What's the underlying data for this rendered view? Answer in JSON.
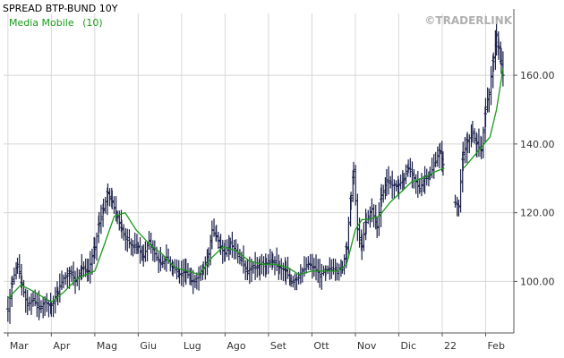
{
  "chart_data": {
    "type": "ohlc",
    "title": "SPREAD BTP-BUND 10Y",
    "watermark": {
      "prefix": "©TRADER",
      "suffix": "LINK"
    },
    "legend": {
      "label": "Media Mobile",
      "period": "(10)",
      "placement": "top-left"
    },
    "colors": {
      "bars": "#1a1f4a",
      "ma": "#1a9a1a",
      "grid": "#d8d8d8",
      "axis": "#555555",
      "title": "#000000",
      "watermark": "#b0b0b0"
    },
    "xlabel": "",
    "ylabel": "",
    "ylim": [
      85,
      178
    ],
    "y_ticks": [
      100,
      120,
      140,
      160
    ],
    "y_tick_labels": [
      "100.00",
      "120.00",
      "140.00",
      "160.00"
    ],
    "x_month_index": [
      0,
      1,
      2,
      3,
      4,
      5,
      6,
      7,
      8,
      9,
      10,
      11
    ],
    "x_month_labels": [
      "Mar",
      "Apr",
      "Mag",
      "Giu",
      "Lug",
      "Ago",
      "Set",
      "Ott",
      "Nov",
      "Dic",
      "22",
      "Feb"
    ],
    "x_range": [
      -0.1,
      11.65
    ],
    "grid": true,
    "close_points": [
      [
        0.0,
        92
      ],
      [
        0.1,
        100
      ],
      [
        0.22,
        105
      ],
      [
        0.32,
        99
      ],
      [
        0.45,
        93
      ],
      [
        0.58,
        95
      ],
      [
        0.72,
        92
      ],
      [
        0.85,
        94
      ],
      [
        1.0,
        93
      ],
      [
        1.15,
        97
      ],
      [
        1.28,
        101
      ],
      [
        1.42,
        103
      ],
      [
        1.55,
        100
      ],
      [
        1.7,
        104
      ],
      [
        1.85,
        103
      ],
      [
        2.0,
        110
      ],
      [
        2.1,
        117
      ],
      [
        2.2,
        121
      ],
      [
        2.3,
        126
      ],
      [
        2.4,
        123
      ],
      [
        2.52,
        119
      ],
      [
        2.62,
        115
      ],
      [
        2.75,
        112
      ],
      [
        2.88,
        110
      ],
      [
        3.0,
        110
      ],
      [
        3.12,
        107
      ],
      [
        3.25,
        112
      ],
      [
        3.38,
        108
      ],
      [
        3.52,
        105
      ],
      [
        3.65,
        107
      ],
      [
        3.8,
        104
      ],
      [
        3.95,
        102
      ],
      [
        4.1,
        103
      ],
      [
        4.22,
        100
      ],
      [
        4.35,
        101
      ],
      [
        4.5,
        104
      ],
      [
        4.62,
        108
      ],
      [
        4.7,
        115
      ],
      [
        4.8,
        113
      ],
      [
        4.9,
        110
      ],
      [
        5.0,
        108
      ],
      [
        5.12,
        111
      ],
      [
        5.25,
        109
      ],
      [
        5.38,
        106
      ],
      [
        5.52,
        103
      ],
      [
        5.65,
        104
      ],
      [
        5.8,
        105
      ],
      [
        5.95,
        105
      ],
      [
        6.1,
        106
      ],
      [
        6.25,
        104
      ],
      [
        6.4,
        103
      ],
      [
        6.52,
        100
      ],
      [
        6.65,
        101
      ],
      [
        6.78,
        103
      ],
      [
        6.92,
        105
      ],
      [
        7.05,
        104
      ],
      [
        7.18,
        102
      ],
      [
        7.32,
        103
      ],
      [
        7.45,
        104
      ],
      [
        7.58,
        103
      ],
      [
        7.7,
        104
      ],
      [
        7.8,
        110
      ],
      [
        7.9,
        125
      ],
      [
        7.96,
        132
      ],
      [
        8.05,
        115
      ],
      [
        8.15,
        110
      ],
      [
        8.25,
        118
      ],
      [
        8.38,
        121
      ],
      [
        8.5,
        116
      ],
      [
        8.6,
        125
      ],
      [
        8.72,
        129
      ],
      [
        8.85,
        128
      ],
      [
        9.0,
        128
      ],
      [
        9.12,
        130
      ],
      [
        9.22,
        133
      ],
      [
        9.35,
        130
      ],
      [
        9.48,
        127
      ],
      [
        9.6,
        130
      ],
      [
        9.72,
        131
      ],
      [
        9.85,
        135
      ],
      [
        9.95,
        138
      ],
      [
        10.02,
        134
      ]
    ],
    "close_points_b": [
      [
        10.3,
        123
      ],
      [
        10.38,
        122
      ],
      [
        10.48,
        137
      ],
      [
        10.58,
        141
      ],
      [
        10.7,
        143
      ],
      [
        10.8,
        140
      ],
      [
        10.9,
        138
      ],
      [
        11.0,
        150
      ],
      [
        11.08,
        155
      ],
      [
        11.18,
        165
      ],
      [
        11.25,
        172
      ],
      [
        11.3,
        168
      ],
      [
        11.36,
        163
      ],
      [
        11.4,
        160
      ]
    ],
    "ma_points": [
      [
        0.0,
        95
      ],
      [
        0.3,
        99
      ],
      [
        0.6,
        97
      ],
      [
        1.0,
        94
      ],
      [
        1.3,
        97
      ],
      [
        1.6,
        101
      ],
      [
        2.0,
        103
      ],
      [
        2.2,
        110
      ],
      [
        2.45,
        119
      ],
      [
        2.7,
        120
      ],
      [
        2.95,
        115
      ],
      [
        3.25,
        111
      ],
      [
        3.55,
        108
      ],
      [
        3.85,
        104
      ],
      [
        4.15,
        103
      ],
      [
        4.4,
        102
      ],
      [
        4.7,
        107
      ],
      [
        4.95,
        110
      ],
      [
        5.25,
        109
      ],
      [
        5.55,
        106
      ],
      [
        5.85,
        105
      ],
      [
        6.15,
        105
      ],
      [
        6.45,
        104
      ],
      [
        6.7,
        102
      ],
      [
        7.0,
        103
      ],
      [
        7.3,
        103
      ],
      [
        7.6,
        103
      ],
      [
        7.8,
        105
      ],
      [
        8.0,
        115
      ],
      [
        8.15,
        118
      ],
      [
        8.3,
        118
      ],
      [
        8.55,
        119
      ],
      [
        8.8,
        123
      ],
      [
        9.05,
        126
      ],
      [
        9.3,
        129
      ],
      [
        9.55,
        130
      ],
      [
        9.85,
        132
      ],
      [
        10.05,
        133
      ]
    ],
    "ma_points_b": [
      [
        10.5,
        133
      ],
      [
        10.7,
        136
      ],
      [
        10.9,
        139
      ],
      [
        11.1,
        142
      ],
      [
        11.25,
        150
      ],
      [
        11.4,
        162
      ]
    ]
  }
}
